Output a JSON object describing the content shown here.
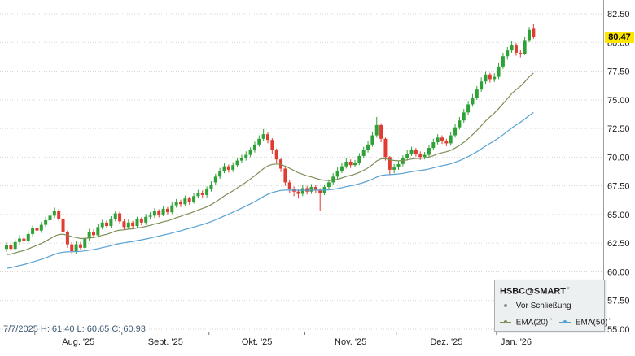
{
  "chart_data": {
    "type": "candlestick",
    "title": "HSBC@SMART",
    "x_labels": [
      "Aug. '25",
      "Sept. '25",
      "Okt. '25",
      "Nov. '25",
      "Dez. '25",
      "Jan. '26"
    ],
    "month_start_indices": [
      7,
      27,
      47,
      69,
      90,
      113
    ],
    "y_axis": {
      "min": 55.0,
      "max": 82.5,
      "step": 2.5,
      "ticks": [
        82.5,
        80.0,
        77.5,
        75.0,
        72.5,
        70.0,
        67.5,
        65.0,
        62.5,
        60.0,
        57.5,
        55.0
      ]
    },
    "last_price": 80.47,
    "series": [
      {
        "name": "EMA(20)",
        "period": 20,
        "color": "#7d8f55"
      },
      {
        "name": "EMA(50)",
        "period": 50,
        "color": "#56a0d3"
      }
    ],
    "colors": {
      "up": "#2fa237",
      "down": "#e03c32",
      "grid": "#d6d6d6",
      "axis": "#9e9e9e",
      "price_tag_bg": "#ffe600"
    },
    "ohlc": [
      [
        62.0,
        62.55,
        61.75,
        62.3
      ],
      [
        62.3,
        62.5,
        61.8,
        62.0
      ],
      [
        62.0,
        62.85,
        61.85,
        62.6
      ],
      [
        62.6,
        63.2,
        62.4,
        62.9
      ],
      [
        62.9,
        63.15,
        62.45,
        62.7
      ],
      [
        62.7,
        63.55,
        62.5,
        63.3
      ],
      [
        63.3,
        64.05,
        63.1,
        63.8
      ],
      [
        63.8,
        64.0,
        63.35,
        63.6
      ],
      [
        63.6,
        64.35,
        63.4,
        64.1
      ],
      [
        64.1,
        64.8,
        63.9,
        64.5
      ],
      [
        64.5,
        65.15,
        64.3,
        64.9
      ],
      [
        64.9,
        65.6,
        64.7,
        65.3
      ],
      [
        65.3,
        65.5,
        64.4,
        64.6
      ],
      [
        64.6,
        64.75,
        63.3,
        63.5
      ],
      [
        63.5,
        63.6,
        62.1,
        62.4
      ],
      [
        62.4,
        62.6,
        61.5,
        61.8
      ],
      [
        61.8,
        62.65,
        61.6,
        62.4
      ],
      [
        62.4,
        62.6,
        61.9,
        62.1
      ],
      [
        62.1,
        63.1,
        61.95,
        62.9
      ],
      [
        62.9,
        63.75,
        62.7,
        63.5
      ],
      [
        63.5,
        63.7,
        62.95,
        63.2
      ],
      [
        63.2,
        64.15,
        63.0,
        63.9
      ],
      [
        63.9,
        64.55,
        63.7,
        64.3
      ],
      [
        64.3,
        64.5,
        63.8,
        64.0
      ],
      [
        64.0,
        64.85,
        63.85,
        64.6
      ],
      [
        64.6,
        65.35,
        64.4,
        65.1
      ],
      [
        65.1,
        65.25,
        64.2,
        64.4
      ],
      [
        64.4,
        64.6,
        63.65,
        63.9
      ],
      [
        63.9,
        64.55,
        63.7,
        64.3
      ],
      [
        64.3,
        64.45,
        63.75,
        64.0
      ],
      [
        64.0,
        64.8,
        63.8,
        64.6
      ],
      [
        64.6,
        64.75,
        64.05,
        64.3
      ],
      [
        64.3,
        65.05,
        64.1,
        64.8
      ],
      [
        64.8,
        65.2,
        64.6,
        64.9
      ],
      [
        64.9,
        65.55,
        64.7,
        65.3
      ],
      [
        65.3,
        65.45,
        64.75,
        65.0
      ],
      [
        65.0,
        65.75,
        64.85,
        65.5
      ],
      [
        65.5,
        65.65,
        65.0,
        65.2
      ],
      [
        65.2,
        66.05,
        65.05,
        65.8
      ],
      [
        65.8,
        66.35,
        65.6,
        66.1
      ],
      [
        66.1,
        66.3,
        65.65,
        65.9
      ],
      [
        65.9,
        66.65,
        65.7,
        66.4
      ],
      [
        66.4,
        66.55,
        65.85,
        66.1
      ],
      [
        66.1,
        66.85,
        65.95,
        66.6
      ],
      [
        66.6,
        67.15,
        66.4,
        66.9
      ],
      [
        66.9,
        67.1,
        66.45,
        66.7
      ],
      [
        66.7,
        67.45,
        66.5,
        67.2
      ],
      [
        67.2,
        67.9,
        67.0,
        67.6
      ],
      [
        67.8,
        68.55,
        67.6,
        68.3
      ],
      [
        68.3,
        69.05,
        68.1,
        68.8
      ],
      [
        68.8,
        69.45,
        68.6,
        69.2
      ],
      [
        69.2,
        69.35,
        68.65,
        68.9
      ],
      [
        68.9,
        69.55,
        68.7,
        69.3
      ],
      [
        69.3,
        69.95,
        69.1,
        69.7
      ],
      [
        69.7,
        70.2,
        69.5,
        69.9
      ],
      [
        69.9,
        70.5,
        69.7,
        70.2
      ],
      [
        70.2,
        70.85,
        70.0,
        70.6
      ],
      [
        70.6,
        71.35,
        70.4,
        71.1
      ],
      [
        71.1,
        71.9,
        70.9,
        71.6
      ],
      [
        71.6,
        72.45,
        71.4,
        72.0
      ],
      [
        72.0,
        72.2,
        71.2,
        71.5
      ],
      [
        71.5,
        71.65,
        70.3,
        70.6
      ],
      [
        70.6,
        70.75,
        69.5,
        69.8
      ],
      [
        69.8,
        69.95,
        68.7,
        69.0
      ],
      [
        69.0,
        69.1,
        67.5,
        67.8
      ],
      [
        67.8,
        68.0,
        66.9,
        67.2
      ],
      [
        67.2,
        67.45,
        66.6,
        67.0
      ],
      [
        67.0,
        67.2,
        66.4,
        66.8
      ],
      [
        66.8,
        67.55,
        66.6,
        67.3
      ],
      [
        67.3,
        67.5,
        66.75,
        67.0
      ],
      [
        67.0,
        67.65,
        66.8,
        67.4
      ],
      [
        67.4,
        67.6,
        66.85,
        67.1
      ],
      [
        67.1,
        67.3,
        65.3,
        66.9
      ],
      [
        66.9,
        67.6,
        66.7,
        67.4
      ],
      [
        67.4,
        68.05,
        67.2,
        67.8
      ],
      [
        67.8,
        68.6,
        67.6,
        68.3
      ],
      [
        68.3,
        69.1,
        68.1,
        68.8
      ],
      [
        68.8,
        69.5,
        68.6,
        69.2
      ],
      [
        69.2,
        69.9,
        69.0,
        69.6
      ],
      [
        69.6,
        69.8,
        69.05,
        69.3
      ],
      [
        69.3,
        69.75,
        69.1,
        69.5
      ],
      [
        69.5,
        70.35,
        69.3,
        70.1
      ],
      [
        70.1,
        70.9,
        69.9,
        70.6
      ],
      [
        70.6,
        71.4,
        70.4,
        71.1
      ],
      [
        71.1,
        72.2,
        70.9,
        71.9
      ],
      [
        71.9,
        73.5,
        71.7,
        72.8
      ],
      [
        72.8,
        72.95,
        71.3,
        71.6
      ],
      [
        71.6,
        71.7,
        69.7,
        70.0
      ],
      [
        70.0,
        70.1,
        68.5,
        68.9
      ],
      [
        68.9,
        69.4,
        68.6,
        69.1
      ],
      [
        69.1,
        69.7,
        68.9,
        69.4
      ],
      [
        69.4,
        70.15,
        69.2,
        69.9
      ],
      [
        69.9,
        70.6,
        69.7,
        70.3
      ],
      [
        70.3,
        70.9,
        70.1,
        70.6
      ],
      [
        70.6,
        70.8,
        70.05,
        70.3
      ],
      [
        70.3,
        70.5,
        69.75,
        70.0
      ],
      [
        70.0,
        70.45,
        69.8,
        70.2
      ],
      [
        70.2,
        71.05,
        70.0,
        70.8
      ],
      [
        70.8,
        71.6,
        70.6,
        71.3
      ],
      [
        71.3,
        72.0,
        71.1,
        71.7
      ],
      [
        71.7,
        71.9,
        71.15,
        71.4
      ],
      [
        71.4,
        71.6,
        70.95,
        71.2
      ],
      [
        71.2,
        72.15,
        71.0,
        71.9
      ],
      [
        71.9,
        72.9,
        71.7,
        72.6
      ],
      [
        72.6,
        73.5,
        72.4,
        73.2
      ],
      [
        73.2,
        74.2,
        73.0,
        73.9
      ],
      [
        73.9,
        74.9,
        73.7,
        74.6
      ],
      [
        74.6,
        75.5,
        74.4,
        75.2
      ],
      [
        75.2,
        76.2,
        75.0,
        75.9
      ],
      [
        75.9,
        76.95,
        75.7,
        76.6
      ],
      [
        76.6,
        77.5,
        76.4,
        77.2
      ],
      [
        77.2,
        77.35,
        76.5,
        76.8
      ],
      [
        76.8,
        77.3,
        76.55,
        77.0
      ],
      [
        77.0,
        78.2,
        76.8,
        77.9
      ],
      [
        77.9,
        79.1,
        77.7,
        78.8
      ],
      [
        78.8,
        79.6,
        78.5,
        79.3
      ],
      [
        79.3,
        80.15,
        79.1,
        79.8
      ],
      [
        79.8,
        79.95,
        78.85,
        79.1
      ],
      [
        79.1,
        79.35,
        78.7,
        79.0
      ],
      [
        79.0,
        80.45,
        78.9,
        80.2
      ],
      [
        80.2,
        81.35,
        80.0,
        81.1
      ],
      [
        81.2,
        81.6,
        80.3,
        80.47
      ]
    ]
  },
  "price_tag": {
    "label": "80.47"
  },
  "info_bar": {
    "text": "7/7/2025 H: 61.40 L: 60.65 C: 60.93",
    "date": "7/7/2025",
    "high": "61.40",
    "low": "60.65",
    "close": "60.93"
  },
  "legend": {
    "title": "HSBC@SMART",
    "subtitle": "Vor Schließung",
    "ema20": "EMA(20)",
    "ema50": "EMA(50)"
  }
}
